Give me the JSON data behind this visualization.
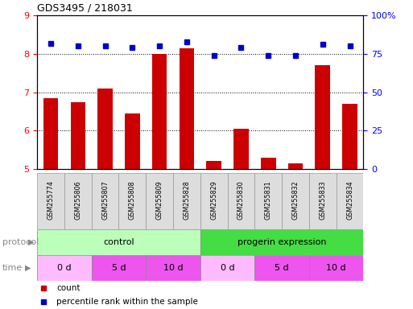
{
  "title": "GDS3495 / 218031",
  "samples": [
    "GSM255774",
    "GSM255806",
    "GSM255807",
    "GSM255808",
    "GSM255809",
    "GSM255828",
    "GSM255829",
    "GSM255830",
    "GSM255831",
    "GSM255832",
    "GSM255833",
    "GSM255834"
  ],
  "bar_values": [
    6.85,
    6.75,
    7.1,
    6.45,
    8.0,
    8.15,
    5.2,
    6.05,
    5.3,
    5.15,
    7.7,
    6.7
  ],
  "dot_values": [
    82,
    80,
    80,
    79,
    80,
    83,
    74,
    79,
    74,
    74,
    81,
    80
  ],
  "ylim_left": [
    5,
    9
  ],
  "ylim_right": [
    0,
    100
  ],
  "yticks_left": [
    5,
    6,
    7,
    8,
    9
  ],
  "yticks_right": [
    0,
    25,
    50,
    75,
    100
  ],
  "ytick_right_labels": [
    "0",
    "25",
    "50",
    "75",
    "100%"
  ],
  "bar_color": "#cc0000",
  "dot_color": "#0000cc",
  "protocol_row": [
    {
      "label": "control",
      "start": 0,
      "end": 6,
      "color": "#bbffbb"
    },
    {
      "label": "progerin expression",
      "start": 6,
      "end": 12,
      "color": "#44dd44"
    }
  ],
  "time_segments": [
    {
      "label": "0 d",
      "start": 0,
      "end": 2,
      "color": "#ffbbff"
    },
    {
      "label": "5 d",
      "start": 2,
      "end": 4,
      "color": "#ee55ee"
    },
    {
      "label": "10 d",
      "start": 4,
      "end": 6,
      "color": "#ee55ee"
    },
    {
      "label": "0 d",
      "start": 6,
      "end": 8,
      "color": "#ffbbff"
    },
    {
      "label": "5 d",
      "start": 8,
      "end": 10,
      "color": "#ee55ee"
    },
    {
      "label": "10 d",
      "start": 10,
      "end": 12,
      "color": "#ee55ee"
    }
  ],
  "legend_items": [
    {
      "label": "count",
      "color": "#cc0000"
    },
    {
      "label": "percentile rank within the sample",
      "color": "#0000cc"
    }
  ],
  "protocol_label": "protocol",
  "time_label": "time",
  "sample_bg_color": "#dddddd",
  "sample_border_color": "#999999",
  "fig_bg": "#ffffff"
}
